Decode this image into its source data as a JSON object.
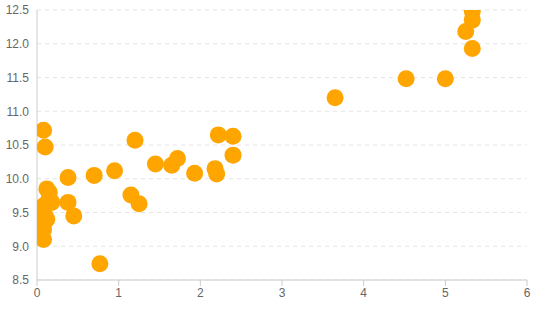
{
  "chart_data": {
    "type": "scatter",
    "color": "#ffa500",
    "marker": "circle",
    "grid": true,
    "x": [
      0.08,
      0.1,
      0.12,
      0.15,
      0.15,
      0.18,
      0.08,
      0.05,
      0.05,
      0.1,
      0.12,
      0.08,
      0.08,
      0.08,
      0.38,
      0.38,
      0.45,
      0.7,
      0.77,
      0.95,
      1.15,
      1.2,
      1.25,
      1.45,
      1.65,
      1.72,
      1.93,
      2.18,
      2.2,
      2.22,
      2.4,
      2.4,
      3.65,
      4.52,
      5.0,
      5.25,
      5.33,
      5.33,
      5.33
    ],
    "values": [
      10.72,
      10.47,
      9.85,
      9.8,
      9.72,
      9.65,
      9.6,
      9.55,
      9.5,
      9.45,
      9.4,
      9.35,
      9.25,
      9.1,
      10.02,
      9.65,
      9.45,
      10.05,
      8.74,
      10.12,
      9.76,
      10.57,
      9.63,
      10.22,
      10.2,
      10.3,
      10.08,
      10.15,
      10.07,
      10.65,
      10.63,
      10.35,
      11.2,
      11.48,
      11.48,
      12.18,
      12.48,
      12.35,
      11.93
    ],
    "xlim": [
      0,
      6
    ],
    "xticks": [
      0,
      1,
      2,
      3,
      4,
      5,
      6
    ],
    "ylim": [
      8.5,
      12.5
    ],
    "yticks": [
      8.5,
      {
        "value": 9,
        "label": "9.0"
      },
      9.5,
      {
        "value": 10,
        "label": "10.0"
      },
      10.5,
      {
        "value": 11,
        "label": "11.0"
      },
      11.5,
      {
        "value": 12,
        "label": "12.0"
      },
      12.5
    ]
  }
}
